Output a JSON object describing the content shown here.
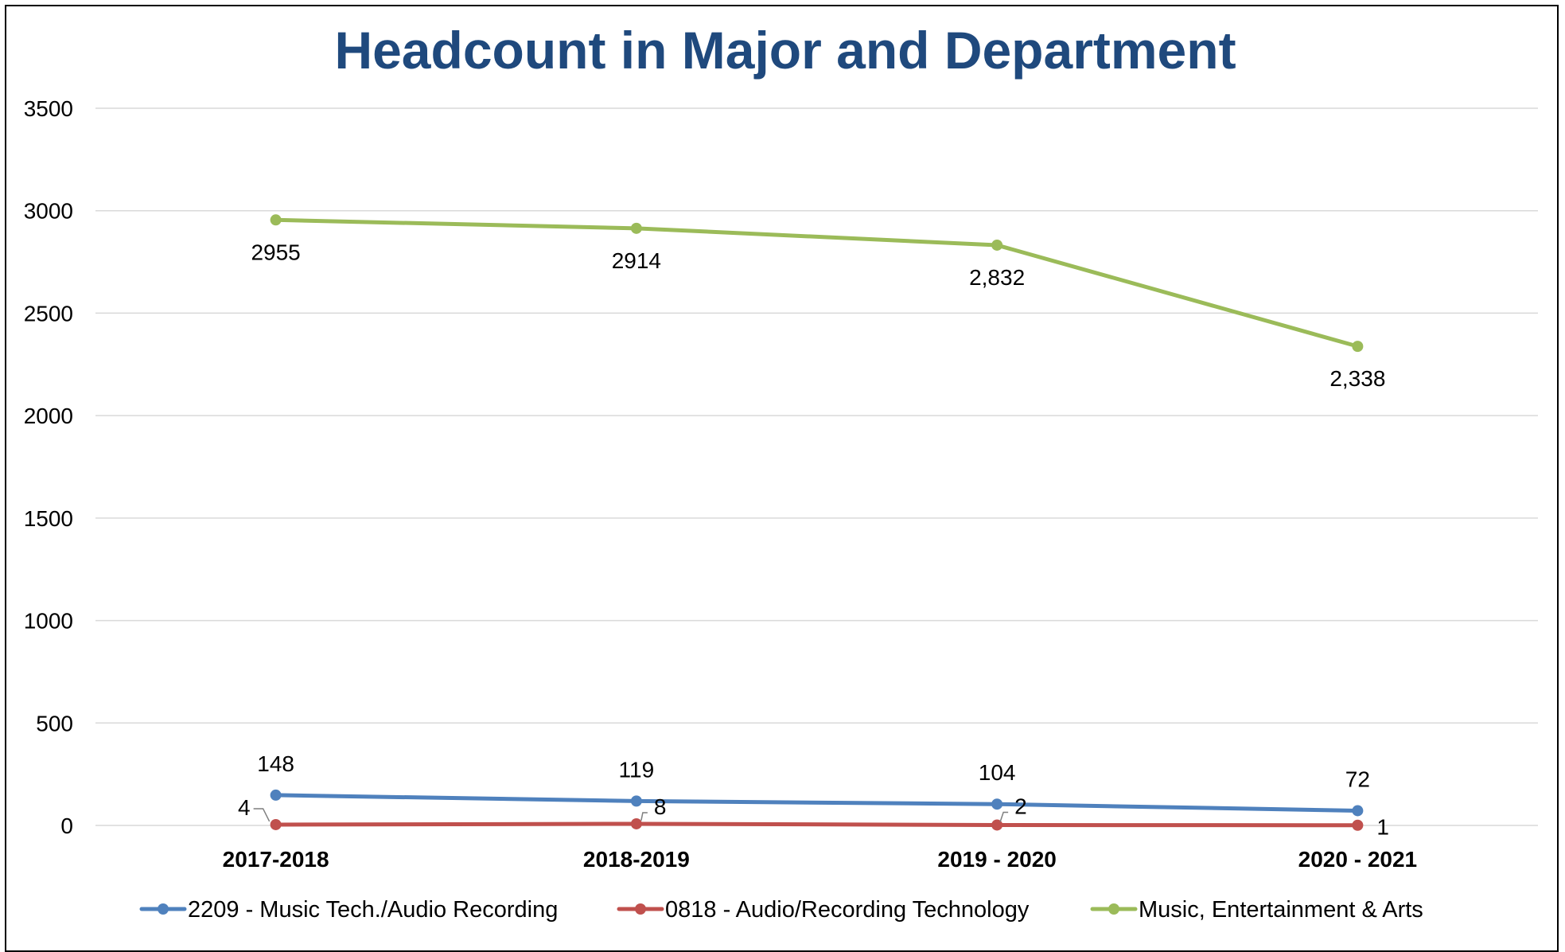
{
  "chart_data": {
    "type": "line",
    "title": "Headcount in Major and Department",
    "xlabel": "",
    "ylabel": "",
    "categories": [
      "2017-2018",
      "2018-2019",
      "2019 - 2020",
      "2020 - 2021"
    ],
    "ylim": [
      0,
      3500
    ],
    "yticks": [
      0,
      500,
      1000,
      1500,
      2000,
      2500,
      3000,
      3500
    ],
    "grid": true,
    "legend_position": "bottom",
    "series": [
      {
        "name": "2209 - Music Tech./Audio Recording",
        "color": "#4F81BD",
        "values": [
          148,
          119,
          104,
          72
        ],
        "labels": [
          "148",
          "119",
          "104",
          "72"
        ]
      },
      {
        "name": "0818 - Audio/Recording Technology",
        "color": "#C0504D",
        "values": [
          4,
          8,
          2,
          1
        ],
        "labels": [
          "4",
          "8",
          "2",
          "1"
        ]
      },
      {
        "name": "Music, Entertainment & Arts",
        "color": "#9BBB59",
        "values": [
          2955,
          2914,
          2832,
          2338
        ],
        "labels": [
          "2955",
          "2914",
          "2,832",
          "2,338"
        ]
      }
    ],
    "title_color": "#1F497D",
    "grid_color": "#D9D9D9"
  }
}
